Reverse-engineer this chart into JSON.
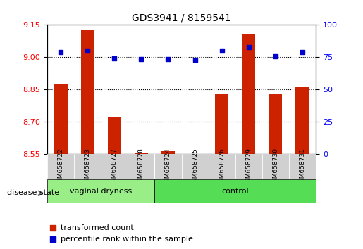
{
  "title": "GDS3941 / 8159541",
  "samples": [
    "GSM658722",
    "GSM658723",
    "GSM658727",
    "GSM658728",
    "GSM658724",
    "GSM658725",
    "GSM658726",
    "GSM658729",
    "GSM658730",
    "GSM658731"
  ],
  "red_values": [
    8.875,
    9.13,
    8.72,
    8.555,
    8.565,
    8.553,
    8.83,
    9.105,
    8.83,
    8.865
  ],
  "blue_values": [
    79,
    80,
    74,
    73.5,
    73.5,
    73,
    80,
    83,
    76,
    79
  ],
  "ylim_left": [
    8.55,
    9.15
  ],
  "ylim_right": [
    0,
    100
  ],
  "yticks_left": [
    8.55,
    8.7,
    8.85,
    9.0,
    9.15
  ],
  "yticks_right": [
    0,
    25,
    50,
    75,
    100
  ],
  "grid_values": [
    9.0,
    8.85,
    8.7
  ],
  "group1_label": "vaginal dryness",
  "group2_label": "control",
  "group1_count": 4,
  "group2_count": 6,
  "disease_state_label": "disease state",
  "legend_red": "transformed count",
  "legend_blue": "percentile rank within the sample",
  "bar_color": "#CC2200",
  "dot_color": "#0000CC",
  "group1_color": "#99EE88",
  "group2_color": "#55DD55",
  "bg_color": "#FFFFFF",
  "plot_bg_color": "#FFFFFF"
}
